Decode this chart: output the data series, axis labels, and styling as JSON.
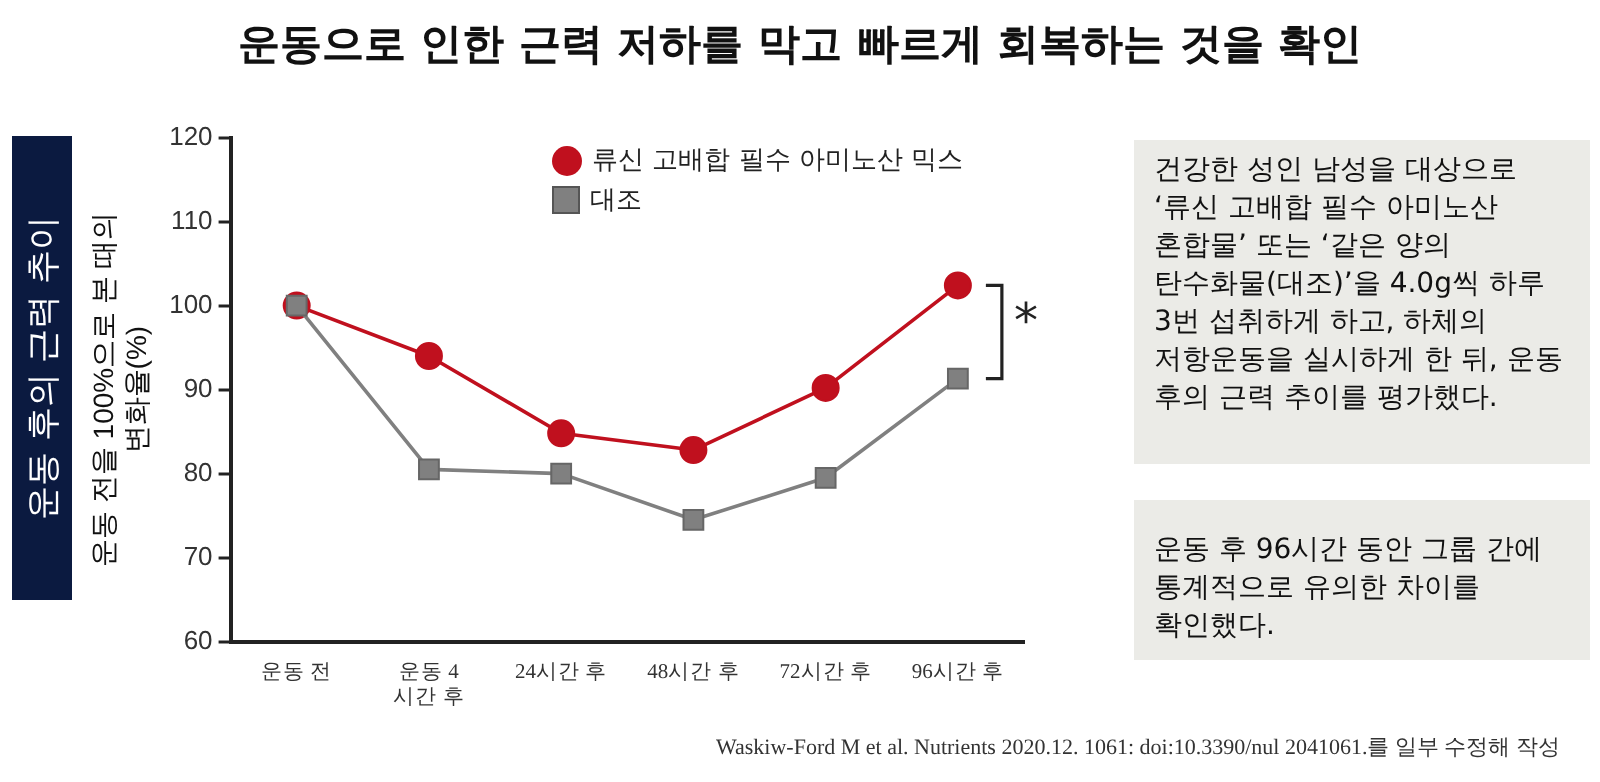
{
  "chart_data": {
    "type": "line",
    "title": "운동으로 인한 근력 저하를 막고 빠르게 회복하는 것을 확인",
    "subtitle": "운동 후의 근력 추이",
    "ylabel": "운동 전을 100%으로 본 때의\n변화율(%)",
    "categories": [
      "운동 전",
      "운동 4\n시간 후",
      "24시간 후",
      "48시간 후",
      "72시간 후",
      "96시간 후"
    ],
    "ylim": [
      60,
      120
    ],
    "yticks": [
      60,
      70,
      80,
      90,
      100,
      110,
      120
    ],
    "series": [
      {
        "name": "류신 고배합 필수 아미노산 믹스",
        "color": "#c0101e",
        "marker": "circle",
        "values": [
          100,
          94,
          84.8,
          82.8,
          90.2,
          102.4
        ]
      },
      {
        "name": "대조",
        "color": "#808080",
        "marker": "square",
        "values": [
          100,
          80.5,
          80,
          74.5,
          79.5,
          91.3
        ]
      }
    ],
    "legend": "top right",
    "grid": false,
    "line_style": "solid",
    "annotations": [
      "*",
      "건강한 성인 남성을 대상으로 ‘류신 고배합 필수 아미노산 혼합물’ 또는 ‘같은 양의 탄수화물(대조)’을 4.0g씩 하루 3번 섭취하게 하고, 하체의 저항운동을 실시하게 한 뒤, 운동 후의 근력 추이를 평가했다.",
      "운동 후 96시간 동안 그룹 간에 통계적으로 유의한 차이를 확인했다.",
      "Waskiw-Ford M et al. Nutrients 2020.12. 1061: doi:10.3390/nul 2041061.를 일부 수정해 작성"
    ]
  }
}
